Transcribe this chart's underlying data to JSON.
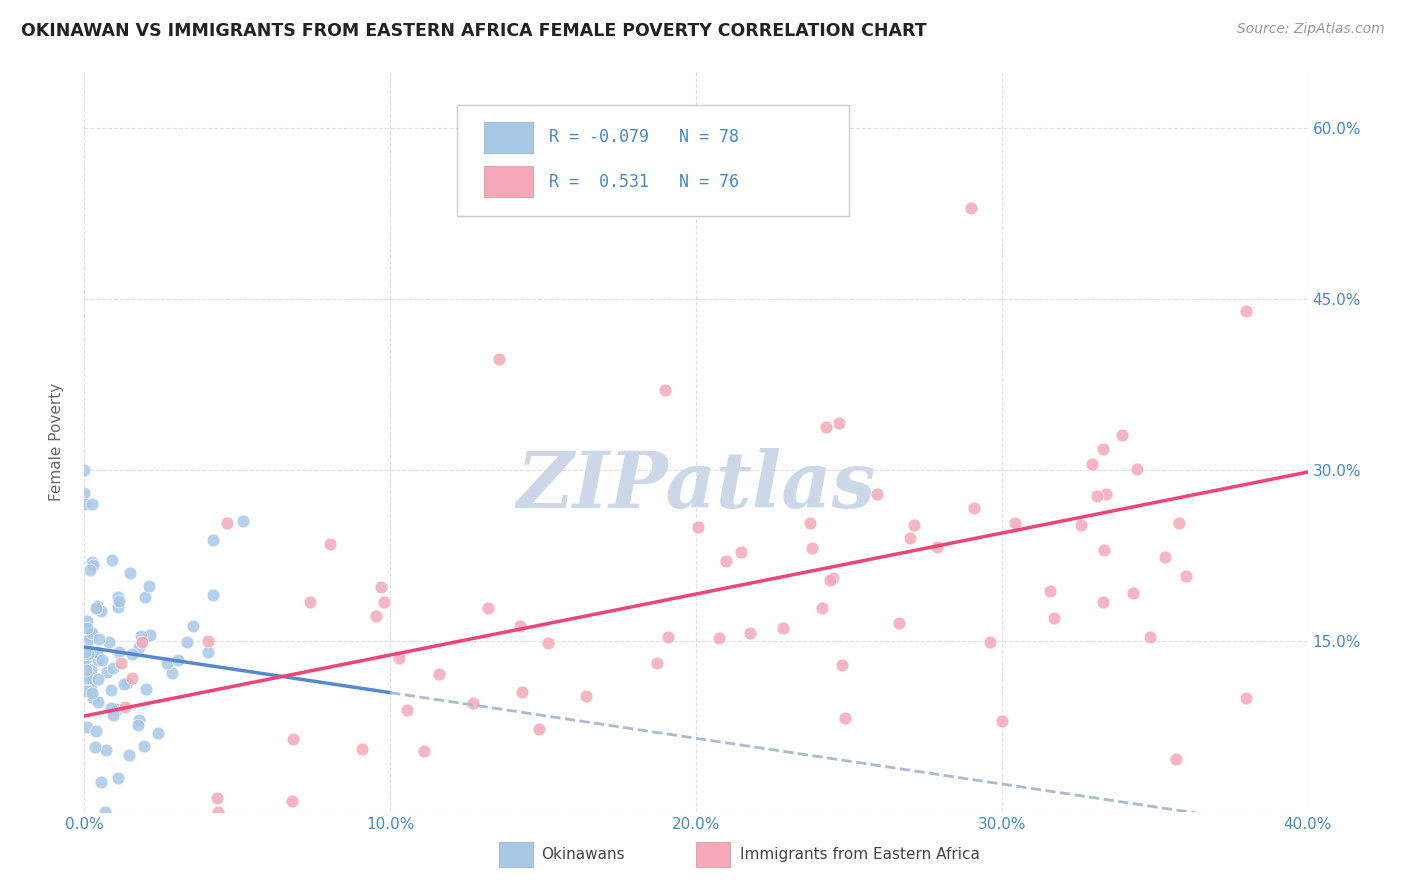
{
  "title": "OKINAWAN VS IMMIGRANTS FROM EASTERN AFRICA FEMALE POVERTY CORRELATION CHART",
  "source": "Source: ZipAtlas.com",
  "ylabel": "Female Poverty",
  "r1": -0.079,
  "n1": 78,
  "r2": 0.531,
  "n2": 76,
  "color_blue": "#a8c8e8",
  "color_pink": "#f4a8b8",
  "color_blue_line": "#5588cc",
  "color_pink_line": "#ee4477",
  "color_blue_text": "#4488cc",
  "color_dashed": "#aabbcc",
  "watermark_color": "#ccd8e8",
  "background_color": "#ffffff",
  "grid_color": "#dddddd",
  "xlim": [
    0.0,
    0.4
  ],
  "ylim": [
    0.0,
    0.65
  ],
  "xticks": [
    0.0,
    0.1,
    0.2,
    0.3,
    0.4
  ],
  "xticklabels": [
    "0.0%",
    "10.0%",
    "20.0%",
    "30.0%",
    "40.0%"
  ],
  "yticks": [
    0.0,
    0.15,
    0.3,
    0.45,
    0.6
  ],
  "yticklabels": [
    "",
    "15.0%",
    "30.0%",
    "45.0%",
    "60.0%"
  ]
}
